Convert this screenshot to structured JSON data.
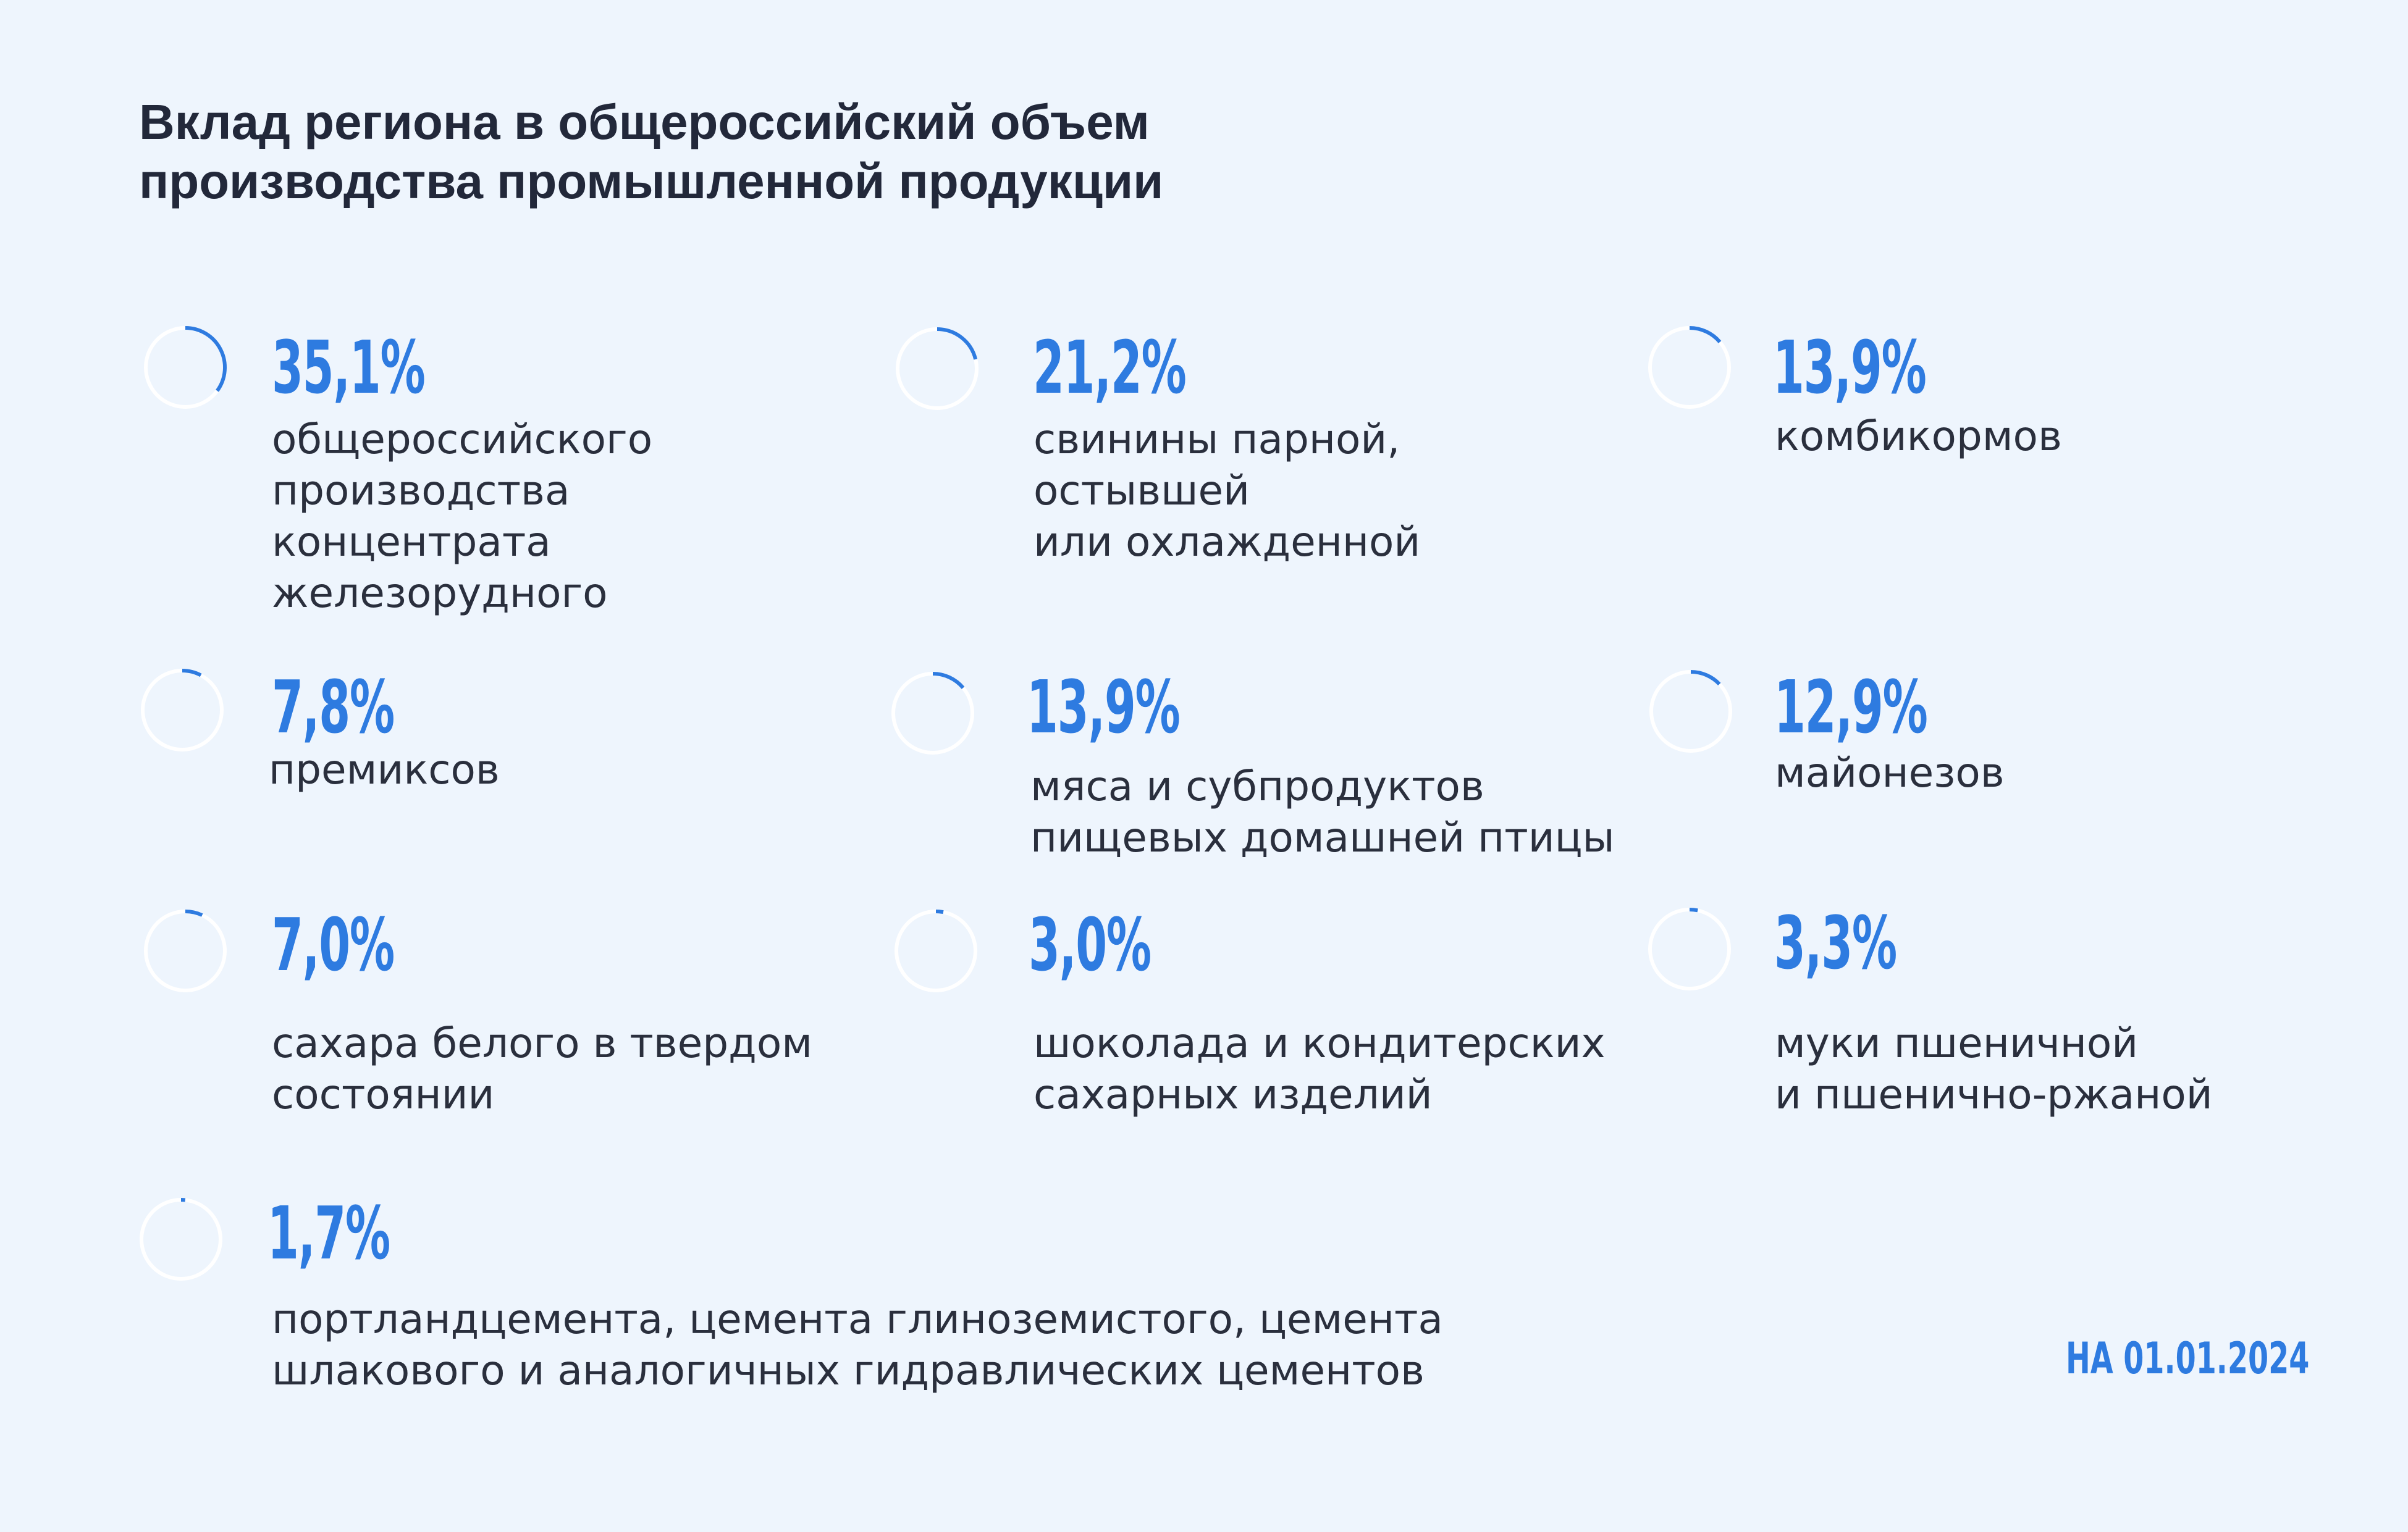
{
  "title": {
    "lines": [
      "Вклад региона в общероссийский объем",
      "производства промышленной продукции"
    ]
  },
  "colors": {
    "background": "#EEF5FD",
    "accent": "#2E7BE0",
    "ring_track": "#FFFFFF",
    "text": "#2A2F3D"
  },
  "items": [
    {
      "value": "35,1%",
      "fraction": 0.351,
      "label_lines": [
        "общероссийского",
        "производства",
        "концентрата",
        "железорудного"
      ]
    },
    {
      "value": "21,2%",
      "fraction": 0.212,
      "label_lines": [
        "свинины парной,",
        "остывшей",
        "или охлажденной"
      ]
    },
    {
      "value": "13,9%",
      "fraction": 0.139,
      "label_lines": [
        "комбикормов"
      ]
    },
    {
      "value": "7,8%",
      "fraction": 0.078,
      "label_lines": [
        "премиксов"
      ]
    },
    {
      "value": "13,9%",
      "fraction": 0.139,
      "label_lines": [
        "мяса и субпродуктов",
        "пищевых домашней птицы"
      ]
    },
    {
      "value": "12,9%",
      "fraction": 0.129,
      "label_lines": [
        "майонезов"
      ]
    },
    {
      "value": "7,0%",
      "fraction": 0.07,
      "label_lines": [
        "сахара белого в твердом",
        "состоянии"
      ]
    },
    {
      "value": "3,0%",
      "fraction": 0.03,
      "label_lines": [
        "шоколада и кондитерских",
        "сахарных изделий"
      ]
    },
    {
      "value": "3,3%",
      "fraction": 0.033,
      "label_lines": [
        "муки пшеничной",
        "и пшенично-ржаной"
      ]
    },
    {
      "value": "1,7%",
      "fraction": 0.017,
      "label_lines": [
        "портландцемента, цемента глиноземистого, цемента",
        "шлакового и аналогичных гидравлических цементов"
      ]
    }
  ],
  "footer": {
    "date": "НА 01.01.2024"
  }
}
